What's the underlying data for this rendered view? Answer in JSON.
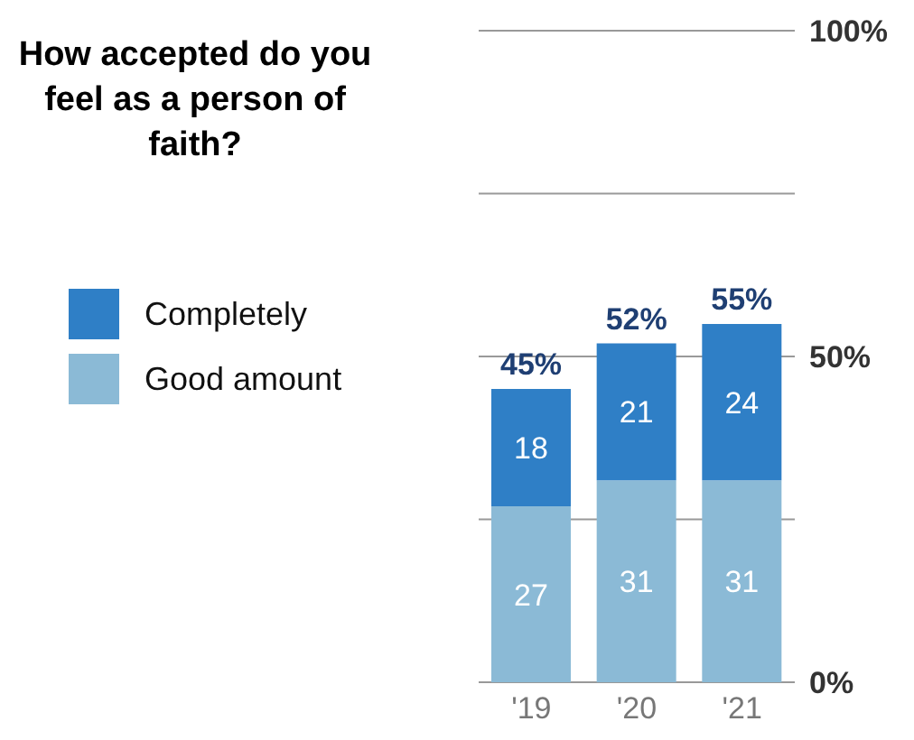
{
  "chart_data": {
    "type": "bar",
    "title": "How accepted do you feel as a person of faith?",
    "categories": [
      "'19",
      "'20",
      "'21"
    ],
    "series": [
      {
        "name": "Good amount",
        "color": "#8bbad6",
        "values": [
          27,
          31,
          31
        ]
      },
      {
        "name": "Completely",
        "color": "#2f7fc6",
        "values": [
          18,
          21,
          24
        ]
      }
    ],
    "stacked": true,
    "data_labels": true,
    "totals": [
      "45%",
      "52%",
      "55%"
    ],
    "ylim": [
      0,
      100
    ],
    "yticks": [
      {
        "value": 0,
        "label": "0%"
      },
      {
        "value": 25,
        "label": null
      },
      {
        "value": 50,
        "label": "50%"
      },
      {
        "value": 75,
        "label": null
      },
      {
        "value": 100,
        "label": "100%"
      }
    ],
    "grid": "y",
    "legend": "left"
  }
}
